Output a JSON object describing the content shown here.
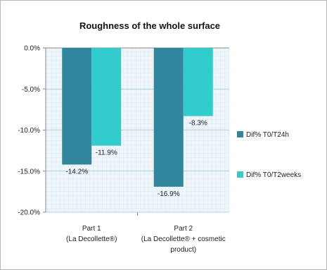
{
  "chart_data": {
    "type": "bar",
    "title": "Roughness of the whole surface",
    "categories": [
      [
        "Part 1",
        "(La Decollette®)"
      ],
      [
        "Part 2",
        "(La Decollette® + cosmetic",
        "product)"
      ]
    ],
    "series": [
      {
        "name": "Dif% T0/T24h",
        "values": [
          -14.2,
          -16.9
        ],
        "labels": [
          "-14.2%",
          "-16.9%"
        ],
        "color": "#31859c"
      },
      {
        "name": "Dif% T0/T2weeks",
        "values": [
          -11.9,
          -8.3
        ],
        "labels": [
          "-11.9%",
          "-8.3%"
        ],
        "color": "#33cccc"
      }
    ],
    "y_ticks": [
      "0.0%",
      "-5.0%",
      "-10.0%",
      "-15.0%",
      "-20.0%"
    ],
    "ylim": [
      -20,
      0
    ],
    "grid": true,
    "legend_position": "right",
    "xlabel": "",
    "ylabel": ""
  }
}
